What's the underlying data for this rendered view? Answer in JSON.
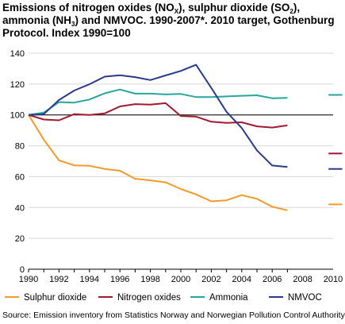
{
  "title": {
    "p1": "Emissions of nitrogen oxides (NO",
    "s1": "X",
    "p2": "), sulphur dioxide (SO",
    "s2": "2",
    "p3": "), ammonia (NH",
    "s3": "3",
    "p4": ") and NMVOC. 1990-2007*. 2010 target, Gothenburg Protocol. Index 1990=100"
  },
  "source": "Source: Emission inventory from Statistics Norway and Norwegian Pollution Control Authority.",
  "chart_data": {
    "type": "line",
    "title": "Emissions of nitrogen oxides (NOX), sulphur dioxide (SO2), ammonia (NH3) and NMVOC. 1990-2007*. 2010 target, Gothenburg Protocol. Index 1990=100",
    "xlabel": "",
    "ylabel": "",
    "xlim": [
      1990,
      2010
    ],
    "ylim": [
      0,
      140
    ],
    "x_ticks": [
      1990,
      1992,
      1994,
      1996,
      1998,
      2000,
      2002,
      2004,
      2006,
      2008,
      2010
    ],
    "y_ticks": [
      0,
      20,
      40,
      60,
      80,
      100,
      120,
      140
    ],
    "grid": true,
    "reference_line": 100,
    "legend_position": "bottom",
    "x": [
      1990,
      1991,
      1992,
      1993,
      1994,
      1995,
      1996,
      1997,
      1998,
      1999,
      2000,
      2001,
      2002,
      2003,
      2004,
      2005,
      2006,
      2007
    ],
    "series": [
      {
        "name": "Sulphur dioxide",
        "color": "#f39a2c",
        "values": [
          100,
          84,
          70.5,
          67.3,
          67,
          65,
          63.8,
          58.6,
          57.6,
          56.3,
          52,
          48.5,
          44,
          44.7,
          48,
          45.6,
          40.5,
          38.2
        ],
        "target_2010": 42
      },
      {
        "name": "Nitrogen oxides",
        "color": "#a3192f",
        "values": [
          100,
          97,
          96.5,
          100.5,
          100,
          101,
          105.5,
          107,
          106.7,
          107.6,
          99.3,
          98.9,
          95.6,
          94.8,
          95.2,
          92.6,
          91.8,
          93.2
        ],
        "target_2010": 75
      },
      {
        "name": "Ammonia",
        "color": "#26a69c",
        "values": [
          100,
          101.5,
          108.3,
          108,
          110,
          114,
          116.5,
          113.8,
          113.8,
          113.3,
          113.6,
          111.6,
          111.6,
          112,
          112.4,
          112.7,
          110.8,
          111
        ],
        "target_2010": 113
      },
      {
        "name": "NMVOC",
        "color": "#2c3a8c",
        "values": [
          100,
          100.5,
          109.7,
          115.8,
          119.9,
          124.8,
          125.7,
          124.5,
          122.6,
          125.6,
          128.5,
          132.5,
          117.5,
          102,
          91.5,
          77,
          67.2,
          66.3
        ],
        "target_2010": 65
      }
    ]
  }
}
